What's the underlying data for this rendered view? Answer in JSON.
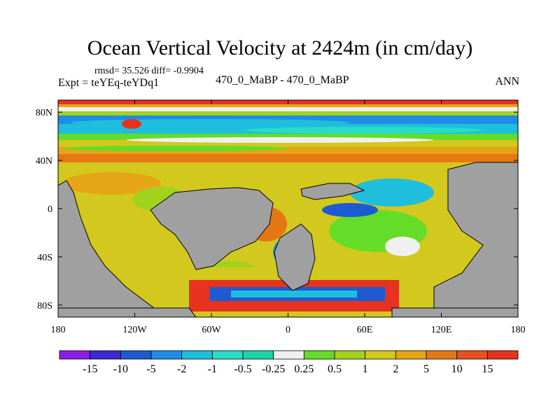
{
  "chart_data": {
    "type": "heatmap",
    "title": "Ocean Vertical Velocity at 2424m (in cm/day)",
    "stats": "rmsd= 35.526 diff= -0.9904",
    "expt_label": "Expt = teYEq-teYDq1",
    "center_label": "470_0_MaBP - 470_0_MaBP",
    "season": "ANN",
    "x_ticks": [
      {
        "value": -180,
        "label": "180"
      },
      {
        "value": -120,
        "label": "120W"
      },
      {
        "value": -60,
        "label": "60W"
      },
      {
        "value": 0,
        "label": "0"
      },
      {
        "value": 60,
        "label": "60E"
      },
      {
        "value": 120,
        "label": "120E"
      },
      {
        "value": 180,
        "label": "180"
      }
    ],
    "y_ticks": [
      {
        "value": 80,
        "label": "80N"
      },
      {
        "value": 40,
        "label": "40N"
      },
      {
        "value": 0,
        "label": "0"
      },
      {
        "value": -40,
        "label": "40S"
      },
      {
        "value": -80,
        "label": "80S"
      }
    ],
    "xlim": [
      -180,
      180
    ],
    "ylim": [
      -90,
      90
    ],
    "colorbar": {
      "levels": [
        "-15",
        "-10",
        "-5",
        "-2",
        "-1",
        "-0.5",
        "-0.25",
        "0.25",
        "0.5",
        "1",
        "2",
        "5",
        "10",
        "15"
      ],
      "colors": [
        "#8c1ee6",
        "#3c2ad2",
        "#1e5ad2",
        "#1e8ce6",
        "#1ebedc",
        "#28dcc8",
        "#1ed2aa",
        "#f0f0f0",
        "#64dc28",
        "#a0d21e",
        "#d2c81e",
        "#e6a514",
        "#e67814",
        "#e6501e",
        "#e6321e"
      ]
    },
    "land_color": "#a0a0a0",
    "description_colors": {
      "ocean_bg": "#1ebedc"
    }
  }
}
